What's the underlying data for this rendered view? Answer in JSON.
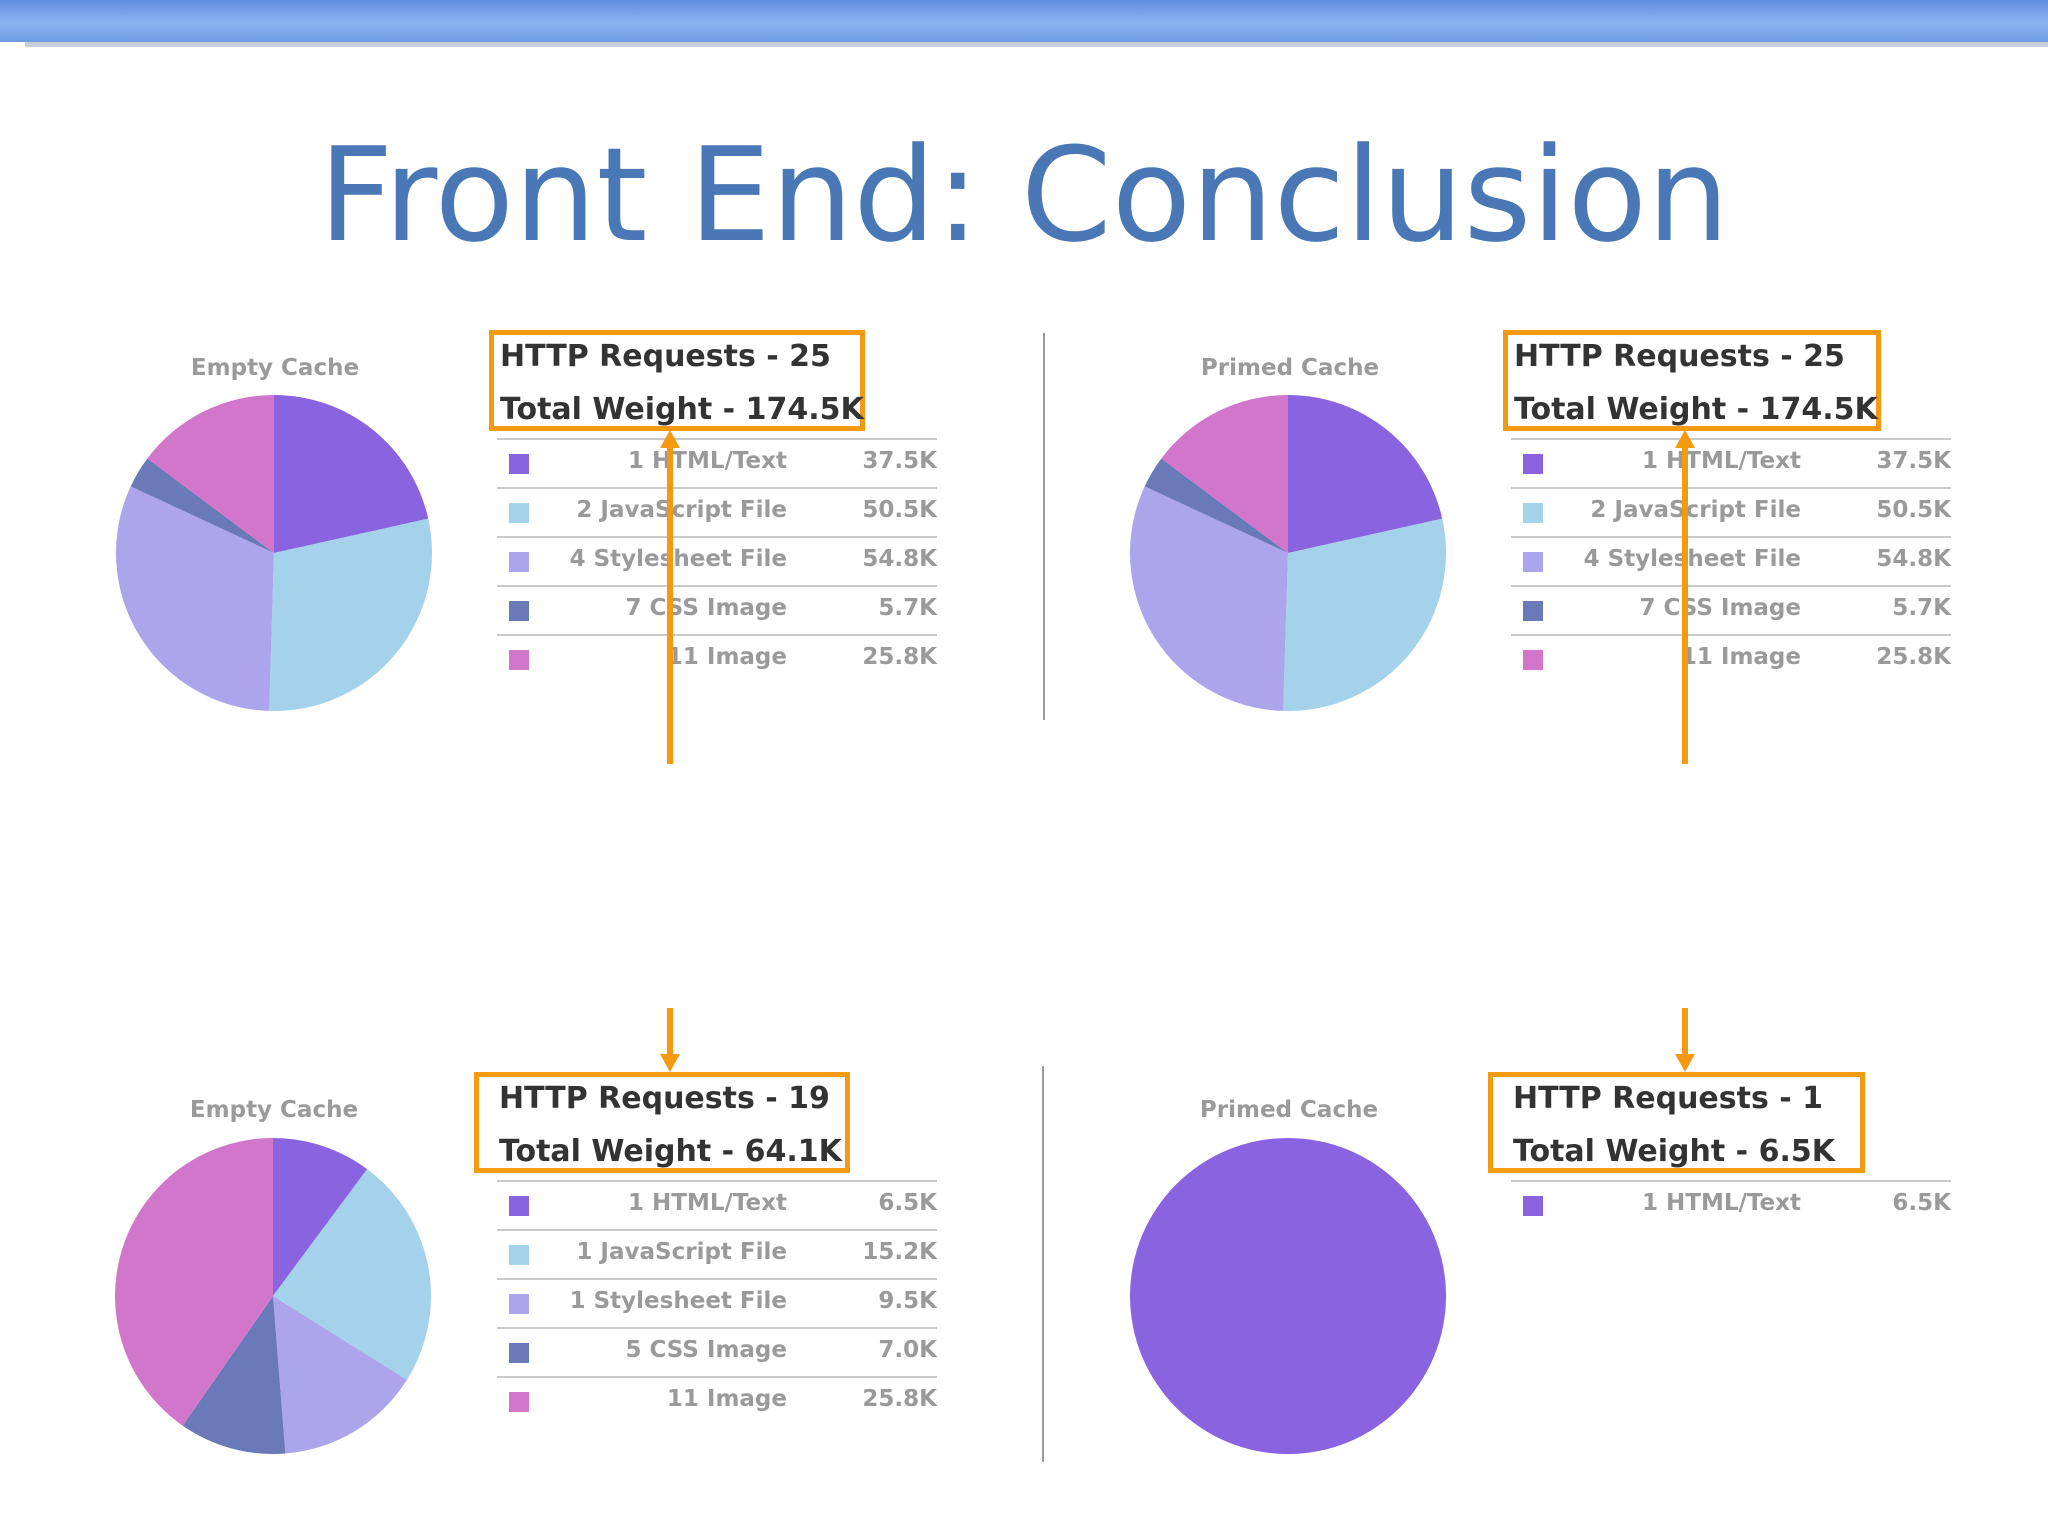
{
  "title": "Front End: Conclusion",
  "colors": {
    "html": "#8a63e0",
    "javascript": "#a3d2ea",
    "stylesheet": "#ada5ec",
    "css_image": "#6a7ab8",
    "image": "#d276cc",
    "highlight": "#f39a10"
  },
  "chart_data": [
    {
      "type": "pie",
      "title": "Empty Cache",
      "summary": {
        "requests": "HTTP Requests - 25",
        "weight": "Total Weight - 174.5K"
      },
      "categories": [
        "HTML/Text",
        "JavaScript File",
        "Stylesheet File",
        "CSS Image",
        "Image"
      ],
      "counts": [
        "1",
        "2",
        "4",
        "7",
        "11"
      ],
      "values": [
        37.5,
        50.5,
        54.8,
        5.7,
        25.8
      ],
      "value_labels": [
        "37.5K",
        "50.5K",
        "54.8K",
        "5.7K",
        "25.8K"
      ]
    },
    {
      "type": "pie",
      "title": "Primed Cache",
      "summary": {
        "requests": "HTTP Requests - 25",
        "weight": "Total Weight - 174.5K"
      },
      "categories": [
        "HTML/Text",
        "JavaScript File",
        "Stylesheet File",
        "CSS Image",
        "Image"
      ],
      "counts": [
        "1",
        "2",
        "4",
        "7",
        "11"
      ],
      "values": [
        37.5,
        50.5,
        54.8,
        5.7,
        25.8
      ],
      "value_labels": [
        "37.5K",
        "50.5K",
        "54.8K",
        "5.7K",
        "25.8K"
      ]
    },
    {
      "type": "pie",
      "title": "Empty Cache",
      "summary": {
        "requests": "HTTP Requests - 19",
        "weight": "Total Weight - 64.1K"
      },
      "categories": [
        "HTML/Text",
        "JavaScript File",
        "Stylesheet File",
        "CSS Image",
        "Image"
      ],
      "counts": [
        "1",
        "1",
        "1",
        "5",
        "11"
      ],
      "values": [
        6.5,
        15.2,
        9.5,
        7.0,
        25.8
      ],
      "value_labels": [
        "6.5K",
        "15.2K",
        "9.5K",
        "7.0K",
        "25.8K"
      ]
    },
    {
      "type": "pie",
      "title": "Primed Cache",
      "summary": {
        "requests": "HTTP Requests - 1",
        "weight": "Total Weight - 6.5K"
      },
      "categories": [
        "HTML/Text"
      ],
      "counts": [
        "1"
      ],
      "values": [
        6.5
      ],
      "value_labels": [
        "6.5K"
      ]
    }
  ]
}
